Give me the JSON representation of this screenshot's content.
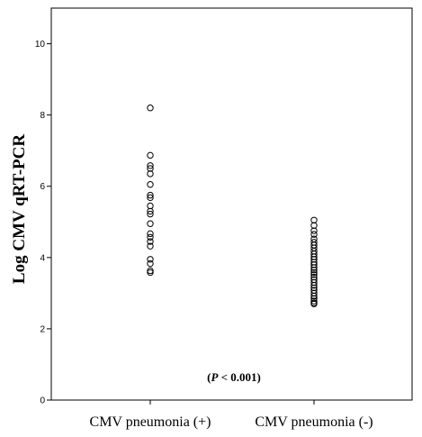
{
  "chart_data": {
    "type": "scatter",
    "title": "",
    "xlabel": "",
    "ylabel": "Log CMV qRT-PCR",
    "ylim": [
      0,
      11
    ],
    "yticks": [
      0,
      2,
      4,
      6,
      8,
      10
    ],
    "grid": false,
    "legend": "none",
    "categories": [
      "CMV pneumonia (+)",
      "CMV pneumonia (-)"
    ],
    "series": [
      {
        "category": "CMV pneumonia (+)",
        "values": [
          8.2,
          6.87,
          6.58,
          6.5,
          6.35,
          6.05,
          5.75,
          5.68,
          5.45,
          5.3,
          5.22,
          4.95,
          4.67,
          4.57,
          4.45,
          4.32,
          3.95,
          3.83,
          3.63,
          3.58
        ]
      },
      {
        "category": "CMV pneumonia (-)",
        "values": [
          5.05,
          4.9,
          4.75,
          4.65,
          4.52,
          4.43,
          4.35,
          4.27,
          4.18,
          4.1,
          4.02,
          3.95,
          3.87,
          3.8,
          3.72,
          3.65,
          3.58,
          3.52,
          3.45,
          3.38,
          3.3,
          3.22,
          3.15,
          3.08,
          3.0,
          2.92,
          2.85,
          2.78,
          2.73,
          2.7
        ]
      }
    ],
    "annotation": {
      "prefix": "(",
      "italic": "P",
      "suffix": " < 0.001)"
    },
    "marker_color": "#000000"
  }
}
